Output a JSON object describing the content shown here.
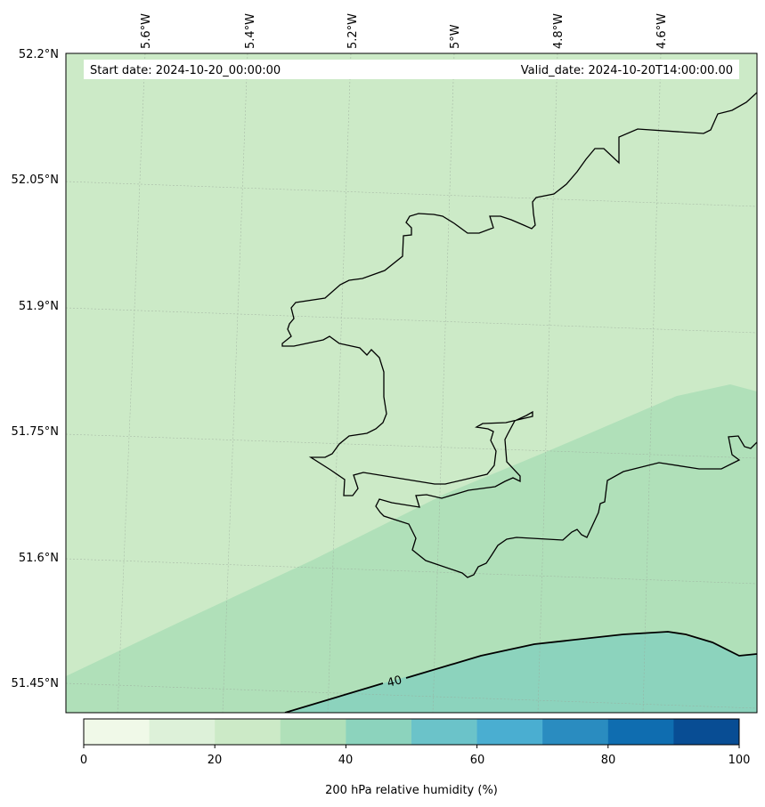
{
  "map": {
    "start_date": "Start date: 2024-10-20_00:00:00",
    "valid_date": "Valid_date: 2024-10-20T14:00:00.00",
    "lon_labels": [
      "5.6°W",
      "5.4°W",
      "5.2°W",
      "5°W",
      "4.8°W",
      "4.6°W"
    ],
    "lat_labels": [
      "52.2°N",
      "52.05°N",
      "51.9°N",
      "51.75°N",
      "51.6°N",
      "51.45°N"
    ],
    "contour_label": "40",
    "field_bands": [
      {
        "range": "20-30",
        "color": "#cceac7"
      },
      {
        "range": "30-40",
        "color": "#b0e0b9"
      },
      {
        "range": "40-50",
        "color": "#8cd3bd"
      }
    ]
  },
  "colorbar": {
    "label": "200 hPa relative humidity (%)",
    "tick_labels": [
      "0",
      "20",
      "40",
      "60",
      "80",
      "100"
    ],
    "colors": [
      "#f0f9e8",
      "#ddf1d9",
      "#cceac7",
      "#b0e0b9",
      "#8cd3bd",
      "#6bc3c9",
      "#4aaed1",
      "#2a8cc0",
      "#0f6db0",
      "#084d94"
    ]
  }
}
